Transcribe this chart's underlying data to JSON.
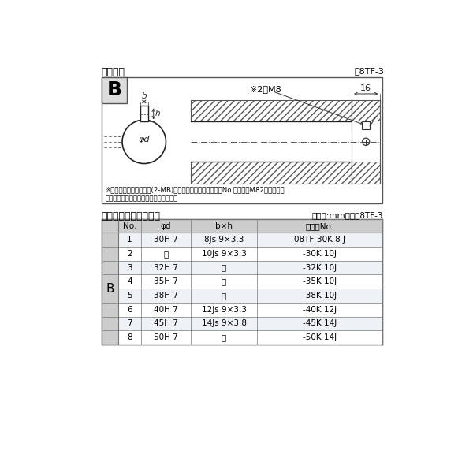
{
  "bg_color": "#ffffff",
  "title_top": "軸穴形状",
  "title_top_right": "図8TF-3",
  "table_title": "軸穴形状コードー覧表",
  "table_title_right": "（単位:mm）　表8TF-3",
  "note_line1": "※セットボルト用タップ(2-MB)が必要な場合は右記コードNo.の末尾にM82を付ける。",
  "note_line2": "（セットボルトは付属されています。）",
  "diagram_label": "B",
  "diagram_note": "※2－M8",
  "diagram_dim": "16",
  "diagram_b": "b",
  "diagram_h": "h",
  "diagram_phi": "φd",
  "table_header": [
    "No.",
    "φd",
    "b×h",
    "コードNo."
  ],
  "table_B_label": "B",
  "table_rows": [
    [
      "1",
      "30H 7",
      "8Js 9×3.3",
      "08TF-30K 8 J"
    ],
    [
      "2",
      "〃",
      "10Js 9×3.3",
      "-30K 10J"
    ],
    [
      "3",
      "32H 7",
      "〃",
      "-32K 10J"
    ],
    [
      "4",
      "35H 7",
      "〃",
      "-35K 10J"
    ],
    [
      "5",
      "38H 7",
      "〃",
      "-38K 10J"
    ],
    [
      "6",
      "40H 7",
      "12Js 9×3.3",
      "-40K 12J"
    ],
    [
      "7",
      "45H 7",
      "14Js 9×3.8",
      "-45K 14J"
    ],
    [
      "8",
      "50H 7",
      "〃",
      "-50K 14J"
    ]
  ],
  "border_color": "#777777",
  "header_bg": "#cccccc",
  "row_bg_alt": "#eef2f6",
  "row_bg_norm": "#ffffff",
  "b_col_bg": "#cccccc",
  "hatch_color": "#666666"
}
